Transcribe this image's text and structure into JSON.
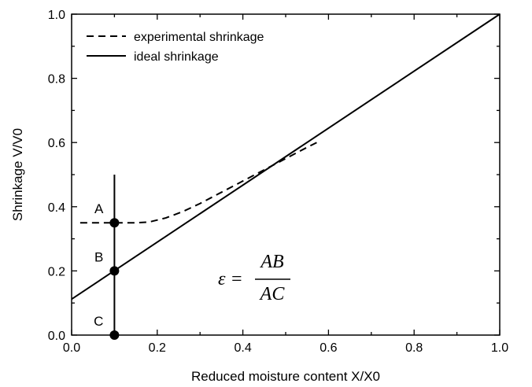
{
  "chart_data": {
    "type": "line",
    "xlabel": "Reduced moisture content X/X0",
    "ylabel": "Shrinkage V/V0",
    "xlim": [
      0.0,
      1.0
    ],
    "ylim": [
      0.0,
      1.0
    ],
    "xticks": [
      "0.0",
      "0.2",
      "0.4",
      "0.6",
      "0.8",
      "1.0"
    ],
    "yticks": [
      "0.0",
      "0.2",
      "0.4",
      "0.6",
      "0.8",
      "1.0"
    ],
    "grid": false,
    "legend_position": "top-left",
    "series": [
      {
        "name": "experimental shrinkage",
        "style": "dashed",
        "color": "#000000",
        "x": [
          0.02,
          0.05,
          0.1,
          0.15,
          0.18,
          0.22,
          0.26,
          0.3,
          0.35,
          0.4,
          0.45,
          0.5,
          0.55,
          0.58
        ],
        "y": [
          0.35,
          0.35,
          0.35,
          0.35,
          0.352,
          0.365,
          0.385,
          0.41,
          0.445,
          0.48,
          0.515,
          0.55,
          0.585,
          0.605
        ]
      },
      {
        "name": "ideal shrinkage",
        "style": "solid",
        "color": "#000000",
        "x": [
          0.0,
          1.0
        ],
        "y": [
          0.112,
          1.0
        ]
      }
    ],
    "vertical_line": {
      "x": 0.1,
      "y": [
        0.0,
        0.5
      ]
    },
    "points": [
      {
        "label": "A",
        "x": 0.1,
        "y": 0.35
      },
      {
        "label": "B",
        "x": 0.1,
        "y": 0.2
      },
      {
        "label": "C",
        "x": 0.1,
        "y": 0.0
      }
    ],
    "annotation": {
      "lhs": "ε =",
      "numerator": "AB",
      "denominator": "AC"
    }
  }
}
